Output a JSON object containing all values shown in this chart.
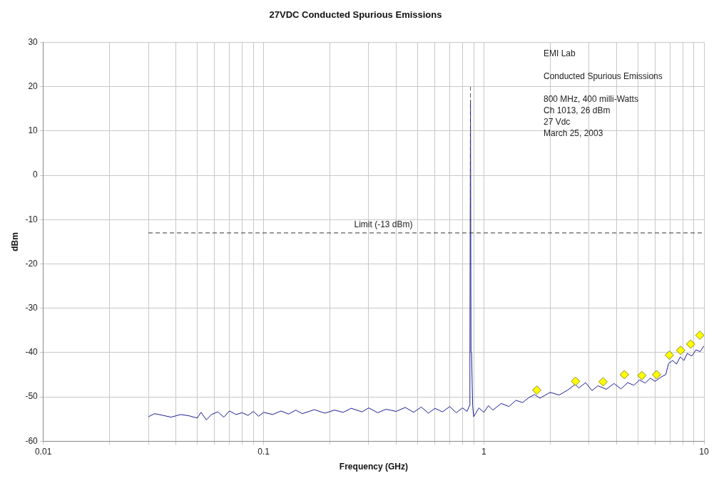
{
  "chart_data": {
    "type": "line",
    "title": "27VDC Conducted Spurious Emissions",
    "xlabel": "Frequency (GHz)",
    "ylabel": "dBm",
    "log": "x",
    "grid": true,
    "xlim": [
      0.01,
      10
    ],
    "ylim": [
      -60,
      30
    ],
    "xticks": [
      0.01,
      {
        "value": 0.02,
        "label": null
      },
      {
        "value": 0.03,
        "label": null
      },
      {
        "value": 0.04,
        "label": null
      },
      {
        "value": 0.05,
        "label": null
      },
      {
        "value": 0.06,
        "label": null
      },
      {
        "value": 0.07,
        "label": null
      },
      {
        "value": 0.08,
        "label": null
      },
      {
        "value": 0.09,
        "label": null
      },
      0.1,
      {
        "value": 0.2,
        "label": null
      },
      {
        "value": 0.3,
        "label": null
      },
      {
        "value": 0.4,
        "label": null
      },
      {
        "value": 0.5,
        "label": null
      },
      {
        "value": 0.6,
        "label": null
      },
      {
        "value": 0.7,
        "label": null
      },
      {
        "value": 0.8,
        "label": null
      },
      {
        "value": 0.9,
        "label": null
      },
      1,
      {
        "value": 2,
        "label": null
      },
      {
        "value": 3,
        "label": null
      },
      {
        "value": 4,
        "label": null
      },
      {
        "value": 5,
        "label": null
      },
      {
        "value": 6,
        "label": null
      },
      {
        "value": 7,
        "label": null
      },
      {
        "value": 8,
        "label": null
      },
      {
        "value": 9,
        "label": null
      },
      10
    ],
    "yticks": [
      -60,
      -50,
      -40,
      -30,
      -20,
      -10,
      0,
      10,
      20,
      30
    ],
    "series": [
      {
        "type": "line",
        "color": "#1c1c96",
        "marker": "none",
        "line_style": "solid",
        "x": [
          0.03,
          0.032,
          0.035,
          0.038,
          0.042,
          0.046,
          0.05,
          0.052,
          0.055,
          0.058,
          0.062,
          0.066,
          0.07,
          0.075,
          0.08,
          0.085,
          0.09,
          0.095,
          0.1,
          0.11,
          0.12,
          0.13,
          0.14,
          0.15,
          0.17,
          0.19,
          0.21,
          0.23,
          0.25,
          0.28,
          0.3,
          0.33,
          0.36,
          0.4,
          0.44,
          0.48,
          0.52,
          0.56,
          0.6,
          0.65,
          0.7,
          0.75,
          0.8,
          0.84,
          0.86,
          0.865,
          0.87,
          0.875,
          0.88,
          0.89,
          0.9,
          0.95,
          1.0,
          1.05,
          1.1,
          1.2,
          1.3,
          1.4,
          1.5,
          1.6,
          1.7,
          1.8,
          2.0,
          2.2,
          2.4,
          2.6,
          2.7,
          2.9,
          3.1,
          3.3,
          3.6,
          3.9,
          4.2,
          4.5,
          4.8,
          5.1,
          5.4,
          5.7,
          6.0,
          6.4,
          6.7,
          6.9,
          7.2,
          7.5,
          7.8,
          8.1,
          8.4,
          8.8,
          9.2,
          9.6,
          10
        ],
        "values": [
          -54.5,
          -53.8,
          -54.2,
          -54.6,
          -54.0,
          -54.3,
          -54.8,
          -53.5,
          -55.2,
          -54.0,
          -53.4,
          -54.6,
          -53.2,
          -54.0,
          -53.6,
          -54.2,
          -53.3,
          -54.4,
          -53.5,
          -54.0,
          -53.2,
          -53.9,
          -53.0,
          -53.8,
          -52.9,
          -53.7,
          -53.0,
          -53.5,
          -52.6,
          -53.4,
          -52.5,
          -53.6,
          -52.8,
          -53.3,
          -52.4,
          -53.5,
          -52.3,
          -53.7,
          -52.6,
          -53.4,
          -52.2,
          -53.6,
          -52.5,
          -53.3,
          -52.0,
          -40,
          17,
          -40,
          -40,
          -52,
          -54.5,
          -52.5,
          -53.5,
          -52.0,
          -53.0,
          -51.5,
          -52.2,
          -50.8,
          -51.3,
          -50.2,
          -49.5,
          -50.3,
          -49.0,
          -49.6,
          -48.5,
          -47.2,
          -48.0,
          -46.8,
          -48.6,
          -47.5,
          -48.3,
          -47.0,
          -48.2,
          -46.8,
          -47.4,
          -46.2,
          -46.9,
          -45.8,
          -46.5,
          -45.5,
          -45.0,
          -42.5,
          -41.8,
          -42.6,
          -41.0,
          -41.8,
          -40.2,
          -40.8,
          -39.4,
          -39.8,
          -38.5
        ]
      },
      {
        "type": "line",
        "color": "#555555",
        "marker": "none",
        "line_style": "dashed",
        "x": [
          0.87,
          0.87
        ],
        "values": [
          -13,
          20
        ]
      },
      {
        "type": "line",
        "color": "#333333",
        "marker": "none",
        "line_style": "dashed",
        "x": [
          0.03,
          10
        ],
        "values": [
          -13,
          -13
        ]
      },
      {
        "type": "scatter",
        "color": "#ffff00",
        "marker": "diamond",
        "x": [
          1.74,
          2.61,
          3.48,
          4.35,
          5.22,
          6.09,
          6.96,
          7.83,
          8.7,
          9.57
        ],
        "values": [
          -48.5,
          -46.5,
          -46.6,
          -45,
          -45.2,
          -45,
          -40.6,
          -39.5,
          -38.1,
          -36.1
        ]
      }
    ],
    "annotations": [
      {
        "text": "Limit (-13 dBm)",
        "x": 0.35,
        "y": -13
      },
      "EMI Lab",
      "Conducted Spurious Emissions",
      "800 MHz, 400 milli-Watts",
      "Ch 1013, 26 dBm",
      "27 Vdc",
      "March 25, 2003"
    ]
  }
}
